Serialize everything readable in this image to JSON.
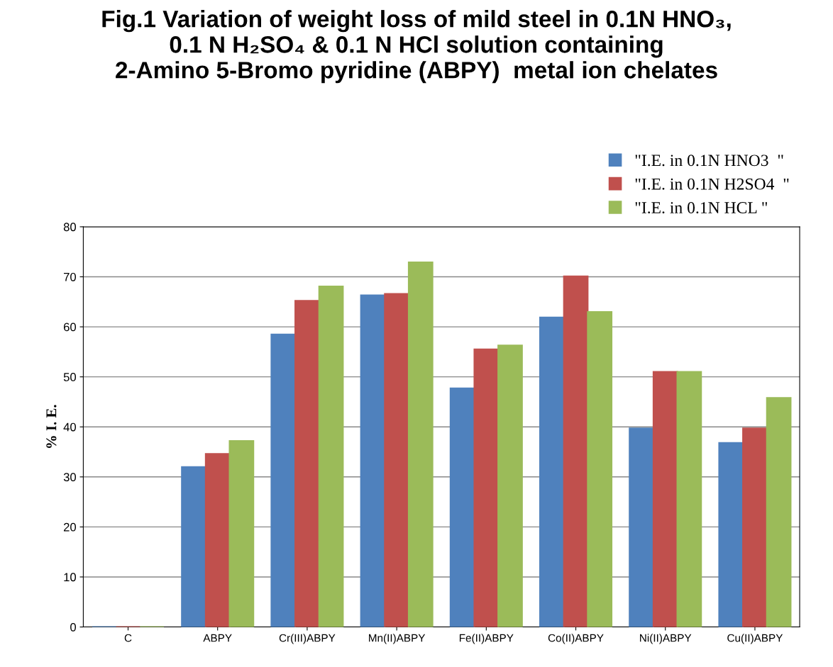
{
  "chart_data": {
    "type": "bar",
    "title": "Fig.1 Variation of weight loss of mild steel in 0.1N HNO₃,\n0.1 N H₂SO₄ & 0.1 N HCl solution containing\n2-Amino 5-Bromo pyridine (ABPY)  metal ion chelates",
    "ylabel": "% I. E.",
    "categories": [
      "C",
      "ABPY",
      "Cr(III)ABPY",
      "Mn(II)ABPY",
      "Fe(II)ABPY",
      "Co(II)ABPY",
      "Ni(II)ABPY",
      "Cu(II)ABPY"
    ],
    "series": [
      {
        "name": "\"I.E. in 0.1N HNO3  \"",
        "color": "#4f81bd",
        "values": [
          0,
          32,
          58.5,
          66.3,
          47.7,
          61.9,
          39.7,
          36.8
        ]
      },
      {
        "name": "\"I.E. in 0.1N H2SO4  \"",
        "color": "#c0504d",
        "values": [
          0,
          34.6,
          65.2,
          66.6,
          55.5,
          70.1,
          51,
          39.7
        ]
      },
      {
        "name": "\"I.E. in 0.1N HCL \"",
        "color": "#9bbb59",
        "values": [
          0,
          37.2,
          68.1,
          72.9,
          56.3,
          63,
          51,
          45.8
        ]
      }
    ],
    "ylim": [
      0,
      80
    ],
    "yticks": [
      0,
      10,
      20,
      30,
      40,
      50,
      60,
      70,
      80
    ],
    "grid": "y",
    "legend": "top right"
  }
}
